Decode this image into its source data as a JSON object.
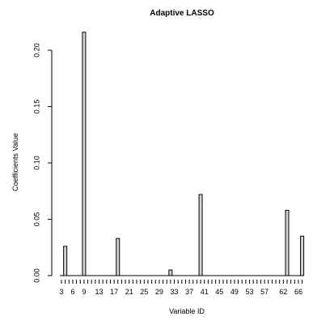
{
  "chart_data": {
    "type": "bar",
    "title": "Adaptive LASSO",
    "xlabel": "Variable ID",
    "ylabel": "Coefficients Value",
    "ylim": [
      0,
      0.22
    ],
    "y_ticks": [
      0.0,
      0.05,
      0.1,
      0.15,
      0.2
    ],
    "y_tick_labels": [
      "0.00",
      "0.05",
      "0.10",
      "0.15",
      "0.20"
    ],
    "x_range": [
      3,
      67
    ],
    "x_tick_labels": [
      "3",
      "6",
      "9",
      "13",
      "17",
      "21",
      "25",
      "29",
      "33",
      "37",
      "41",
      "45",
      "49",
      "53",
      "57",
      "62",
      "66"
    ],
    "x_tick_positions": [
      3,
      6,
      9,
      13,
      17,
      21,
      25,
      29,
      33,
      37,
      41,
      45,
      49,
      53,
      57,
      62,
      66
    ],
    "series": [
      {
        "values_by_variable": [
          {
            "x": 4,
            "y": 0.026
          },
          {
            "x": 9,
            "y": 0.216
          },
          {
            "x": 18,
            "y": 0.033
          },
          {
            "x": 32,
            "y": 0.005
          },
          {
            "x": 40,
            "y": 0.072
          },
          {
            "x": 63,
            "y": 0.058
          },
          {
            "x": 67,
            "y": 0.035
          }
        ]
      }
    ],
    "bar_fill": "#d3d3d3",
    "bar_stroke": "#000000",
    "grid": false
  }
}
